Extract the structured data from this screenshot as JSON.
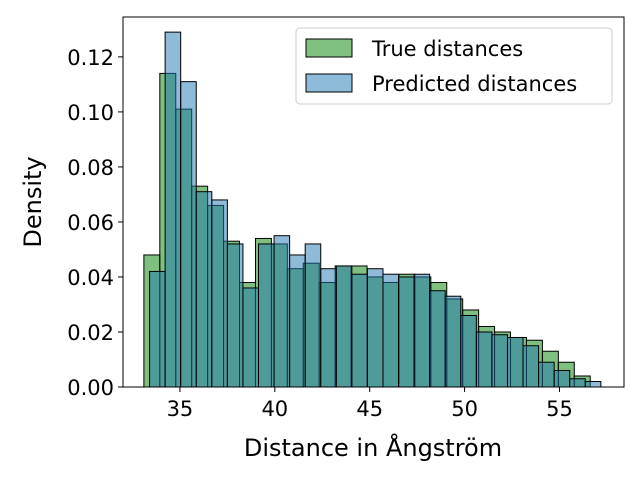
{
  "chart_data": {
    "type": "histogram",
    "title": "",
    "xlabel": "Distance in Ångström",
    "ylabel": "Density",
    "xlim": [
      32.0,
      58.4
    ],
    "ylim": [
      0,
      0.1345
    ],
    "xticks": [
      35,
      40,
      45,
      50,
      55
    ],
    "xtick_labels": [
      "35",
      "40",
      "45",
      "50",
      "55"
    ],
    "yticks": [
      0,
      0.02,
      0.04,
      0.06,
      0.08,
      0.1,
      0.12
    ],
    "ytick_labels": [
      "0.00",
      "0.02",
      "0.04",
      "0.06",
      "0.08",
      "0.10",
      "0.12"
    ],
    "grid": false,
    "legend_position": "top-right",
    "series": [
      {
        "name": "True distances",
        "color": "#008000",
        "alpha": 0.5,
        "bin_start": 33.1,
        "bin_width": 0.84,
        "values": [
          0.048,
          0.114,
          0.101,
          0.073,
          0.066,
          0.053,
          0.038,
          0.054,
          0.052,
          0.043,
          0.045,
          0.038,
          0.044,
          0.044,
          0.04,
          0.038,
          0.041,
          0.04,
          0.038,
          0.032,
          0.028,
          0.022,
          0.02,
          0.018,
          0.017,
          0.013,
          0.009,
          0.004
        ]
      },
      {
        "name": "Predicted distances",
        "color": "#1f77b4",
        "alpha": 0.5,
        "bin_start": 33.4,
        "bin_width": 0.82,
        "values": [
          0.042,
          0.129,
          0.111,
          0.071,
          0.068,
          0.052,
          0.036,
          0.052,
          0.055,
          0.048,
          0.052,
          0.043,
          0.044,
          0.041,
          0.043,
          0.041,
          0.04,
          0.041,
          0.035,
          0.033,
          0.026,
          0.02,
          0.019,
          0.018,
          0.015,
          0.009,
          0.006,
          0.003,
          0.002
        ]
      }
    ]
  }
}
